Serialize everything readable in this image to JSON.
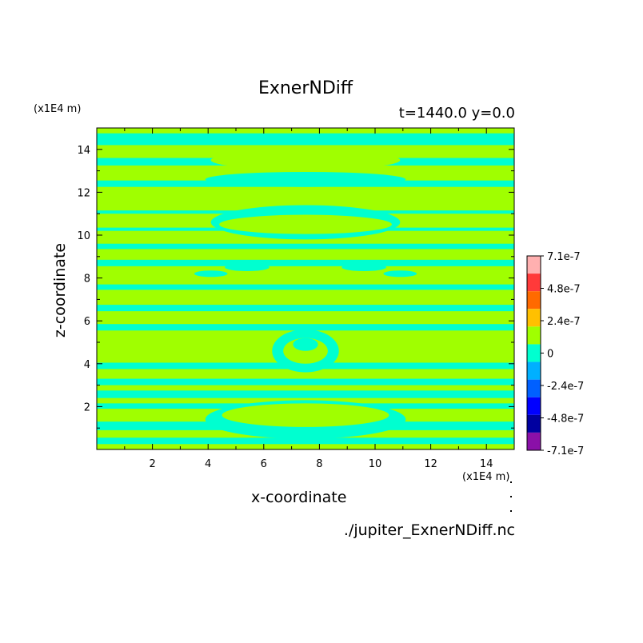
{
  "chart_data": {
    "type": "heatmap",
    "title": "ExnerNDiff",
    "time_label": "t=1440.0 y=0.0",
    "xlabel": "x-coordinate",
    "ylabel": "z-coordinate",
    "x_unit": "(x1E4 m)",
    "y_unit": "(x1E4 m)",
    "source_file": "./jupiter_ExnerNDiff.nc",
    "xlim": [
      0,
      15
    ],
    "ylim": [
      0,
      15
    ],
    "xticks": [
      2,
      4,
      6,
      8,
      10,
      12,
      14
    ],
    "yticks": [
      2,
      4,
      6,
      8,
      10,
      12,
      14
    ],
    "colorbar": {
      "labels": [
        "7.1e-7",
        "4.8e-7",
        "2.4e-7",
        "0",
        "-2.4e-7",
        "-4.8e-7",
        "-7.1e-7"
      ],
      "colors": [
        "#ffb0b0",
        "#ff3a3a",
        "#ff6a00",
        "#ffc000",
        "#a0ff00",
        "#00ffd0",
        "#00b0ff",
        "#0060ff",
        "#0000ff",
        "#0000a0",
        "#8a10a8"
      ]
    },
    "field_colors": {
      "positive_small": "#a0ff00",
      "negative_small": "#00ffd0"
    },
    "negative_bands_z": [
      [
        0.25,
        0.55
      ],
      [
        0.9,
        1.3
      ],
      [
        1.9,
        2.15
      ],
      [
        2.4,
        2.75
      ],
      [
        3.0,
        3.3
      ],
      [
        3.75,
        4.05
      ],
      [
        5.55,
        5.85
      ],
      [
        6.45,
        6.75
      ],
      [
        7.45,
        7.7
      ],
      [
        8.55,
        8.85
      ],
      [
        9.35,
        9.6
      ],
      [
        10.2,
        10.35
      ],
      [
        11.0,
        11.15
      ],
      [
        12.25,
        12.55
      ],
      [
        13.25,
        13.6
      ],
      [
        14.2,
        14.75
      ]
    ]
  }
}
